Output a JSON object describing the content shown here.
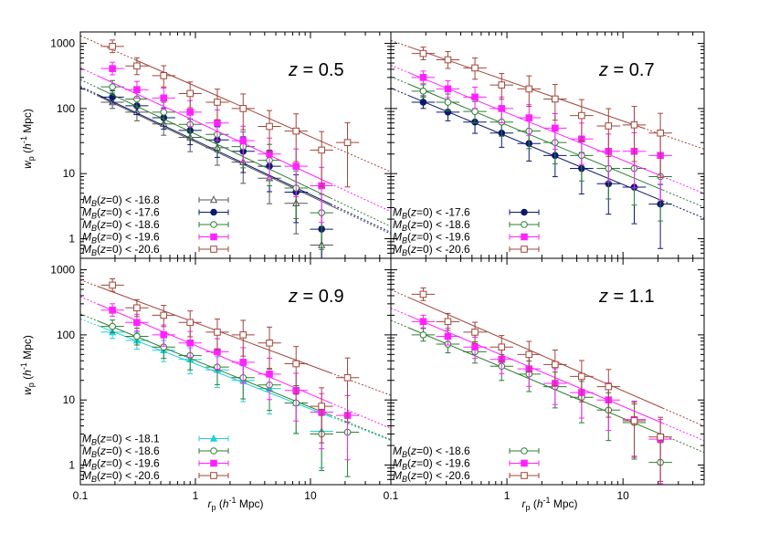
{
  "chart_data": {
    "type": "scatter",
    "x_axis": {
      "label_main": "r",
      "label_sub": "p",
      "label_unit_pre": " (",
      "label_h": "h",
      "label_exp": "-1",
      "label_unit_post": " Mpc)",
      "scale": "log",
      "range": [
        0.1,
        50
      ],
      "ticks": [
        "0.1",
        "1",
        "10"
      ],
      "tick_values": [
        0.1,
        1,
        10
      ]
    },
    "y_axis": {
      "label_main": "w",
      "label_sub": "p",
      "label_unit_pre": " (",
      "label_h": "h",
      "label_exp": "-1",
      "label_unit_post": " Mpc)",
      "scale": "log",
      "range": [
        0.5,
        1500
      ],
      "ticks": [
        "1",
        "10",
        "100",
        "1000"
      ],
      "tick_values": [
        1,
        10,
        100,
        1000
      ]
    },
    "colors": {
      "-16.8": "#555555",
      "-17.6": "#0b1a6e",
      "-18.1": "#22d0d8",
      "-18.6": "#2e7d32",
      "-19.6": "#ff22ff",
      "-20.6": "#a0453a"
    },
    "panels": [
      {
        "z_prefix": "z",
        "z_value": " = 0.5",
        "series": [
          {
            "key": "-16.8",
            "legend_math": "M",
            "legend_sub": "B",
            "legend_arg": "(",
            "legend_z": "z",
            "legend_rest": "=0) < -16.8",
            "marker": "triangle-open",
            "x": [
              0.19,
              0.31,
              0.53,
              0.9,
              1.55,
              2.6,
              4.4,
              7.5,
              12.5
            ],
            "y": [
              125,
              88,
              58,
              36,
              25,
              15,
              8.5,
              3.5,
              0.8
            ],
            "fit": [
              0.14,
              17,
              158,
              2.9
            ]
          },
          {
            "key": "-17.6",
            "legend_math": "M",
            "legend_sub": "B",
            "legend_arg": "(",
            "legend_z": "z",
            "legend_rest": "=0) < -17.6",
            "marker": "circle-filled",
            "x": [
              0.19,
              0.31,
              0.53,
              0.9,
              1.55,
              2.6,
              4.4,
              7.5,
              12.5
            ],
            "y": [
              150,
              110,
              72,
              46,
              33,
              22,
              13,
              5.2,
              1.4
            ],
            "fit": [
              0.14,
              15,
              165,
              3.4
            ]
          },
          {
            "key": "-18.6",
            "legend_math": "M",
            "legend_sub": "B",
            "legend_arg": "(",
            "legend_z": "z",
            "legend_rest": "=0) < -18.6",
            "marker": "circle-open",
            "x": [
              0.19,
              0.31,
              0.53,
              0.9,
              1.55,
              2.6,
              4.4,
              7.5,
              12.5
            ],
            "y": [
              215,
              140,
              88,
              57,
              40,
              26,
              16,
              6,
              2.5
            ],
            "fit": [
              0.14,
              15,
              210,
              4.2
            ]
          },
          {
            "key": "-19.6",
            "legend_math": "M",
            "legend_sub": "B",
            "legend_arg": "(",
            "legend_z": "z",
            "legend_rest": "=0) < -19.6",
            "marker": "square-filled",
            "x": [
              0.19,
              0.31,
              0.53,
              0.9,
              1.55,
              2.6,
              4.4,
              7.5,
              12.5
            ],
            "y": [
              410,
              195,
              145,
              88,
              60,
              32,
              20,
              13,
              6.5
            ],
            "fit": [
              0.14,
              15,
              320,
              7
            ]
          },
          {
            "key": "-20.6",
            "legend_math": "M",
            "legend_sub": "B",
            "legend_arg": "(",
            "legend_z": "z",
            "legend_rest": "=0) < -20.6",
            "marker": "square-open",
            "x": [
              0.19,
              0.31,
              0.53,
              0.9,
              1.55,
              2.6,
              4.4,
              7.5,
              12.5,
              21
            ],
            "y": [
              900,
              450,
              320,
              170,
              125,
              100,
              53,
              45,
              23,
              30
            ],
            "fit": [
              0.3,
              15,
              560,
              27
            ]
          }
        ]
      },
      {
        "z_prefix": "z",
        "z_value": " = 0.7",
        "series": [
          {
            "key": "-17.6",
            "legend_math": "M",
            "legend_sub": "B",
            "legend_arg": "(",
            "legend_z": "z",
            "legend_rest": "=0) < -17.6",
            "marker": "circle-filled",
            "x": [
              0.19,
              0.31,
              0.53,
              0.9,
              1.55,
              2.6,
              4.4,
              7.5,
              12.5,
              21
            ],
            "y": [
              125,
              88,
              62,
              42,
              29,
              19,
              12,
              7,
              6.2,
              3.4
            ],
            "fit": [
              0.14,
              22,
              160,
              3.8
            ]
          },
          {
            "key": "-18.6",
            "legend_math": "M",
            "legend_sub": "B",
            "legend_arg": "(",
            "legend_z": "z",
            "legend_rest": "=0) < -18.6",
            "marker": "circle-open",
            "x": [
              0.19,
              0.31,
              0.53,
              0.9,
              1.55,
              2.6,
              4.4,
              7.5,
              12.5,
              21
            ],
            "y": [
              185,
              125,
              90,
              62,
              45,
              30,
              19,
              12,
              12,
              9
            ],
            "fit": [
              0.14,
              22,
              240,
              5.6
            ]
          },
          {
            "key": "-19.6",
            "legend_math": "M",
            "legend_sub": "B",
            "legend_arg": "(",
            "legend_z": "z",
            "legend_rest": "=0) < -19.6",
            "marker": "square-filled",
            "x": [
              0.19,
              0.31,
              0.53,
              0.9,
              1.55,
              2.6,
              4.4,
              7.5,
              12.5,
              21
            ],
            "y": [
              300,
              200,
              150,
              100,
              72,
              50,
              34,
              22,
              22,
              19
            ],
            "fit": [
              0.14,
              22,
              360,
              9
            ]
          },
          {
            "key": "-20.6",
            "legend_math": "M",
            "legend_sub": "B",
            "legend_arg": "(",
            "legend_z": "z",
            "legend_rest": "=0) < -20.6",
            "marker": "square-open",
            "x": [
              0.19,
              0.31,
              0.53,
              0.9,
              1.55,
              2.6,
              4.4,
              7.5,
              12.5,
              21
            ],
            "y": [
              700,
              560,
              420,
              230,
              200,
              140,
              78,
              54,
              56,
              42
            ],
            "fit": [
              0.14,
              15,
              900,
              50
            ]
          }
        ]
      },
      {
        "z_prefix": "z",
        "z_value": " = 0.9",
        "series": [
          {
            "key": "-18.1",
            "legend_math": "M",
            "legend_sub": "B",
            "legend_arg": "(",
            "legend_z": "z",
            "legend_rest": "=0) < -18.1",
            "marker": "triangle-filled",
            "x": [
              0.19,
              0.31,
              0.53,
              0.9,
              1.55,
              2.6,
              4.4,
              7.5,
              12.5
            ],
            "y": [
              110,
              82,
              58,
              42,
              29,
              20,
              15,
              9,
              3.3
            ],
            "fit": [
              0.14,
              15,
              140,
              5.5
            ]
          },
          {
            "key": "-18.6",
            "legend_math": "M",
            "legend_sub": "B",
            "legend_arg": "(",
            "legend_z": "z",
            "legend_rest": "=0) < -18.6",
            "marker": "circle-open",
            "x": [
              0.19,
              0.31,
              0.53,
              0.9,
              1.55,
              2.6,
              4.4,
              7.5,
              12.5,
              21
            ],
            "y": [
              135,
              95,
              65,
              48,
              32,
              22,
              17,
              9,
              3,
              3.2
            ],
            "fit": [
              0.14,
              15,
              165,
              5.8
            ]
          },
          {
            "key": "-19.6",
            "legend_math": "M",
            "legend_sub": "B",
            "legend_arg": "(",
            "legend_z": "z",
            "legend_rest": "=0) < -19.6",
            "marker": "square-filled",
            "x": [
              0.19,
              0.31,
              0.53,
              0.9,
              1.55,
              2.6,
              4.4,
              7.5,
              12.5,
              21
            ],
            "y": [
              240,
              155,
              100,
              75,
              55,
              38,
              25,
              14,
              6.5,
              5.8
            ],
            "fit": [
              0.14,
              15,
              300,
              9
            ]
          },
          {
            "key": "-20.6",
            "legend_math": "M",
            "legend_sub": "B",
            "legend_arg": "(",
            "legend_z": "z",
            "legend_rest": "=0) < -20.6",
            "marker": "square-open",
            "x": [
              0.19,
              0.31,
              0.53,
              0.9,
              1.55,
              2.6,
              4.4,
              7.5,
              12.5,
              21
            ],
            "y": [
              580,
              260,
              200,
              155,
              110,
              100,
              75,
              36,
              8,
              22
            ],
            "fit": [
              0.14,
              15,
              560,
              26
            ]
          }
        ]
      },
      {
        "z_prefix": "z",
        "z_value": " = 1.1",
        "series": [
          {
            "key": "-18.6",
            "legend_math": "M",
            "legend_sub": "B",
            "legend_arg": "(",
            "legend_z": "z",
            "legend_rest": "=0) < -18.6",
            "marker": "circle-open",
            "x": [
              0.19,
              0.31,
              0.53,
              0.9,
              1.55,
              2.6,
              4.4,
              7.5,
              12.5,
              21
            ],
            "y": [
              100,
              72,
              55,
              33,
              25,
              16,
              11,
              7,
              4.5,
              1.1
            ],
            "fit": [
              0.14,
              22,
              130,
              2.9
            ]
          },
          {
            "key": "-19.6",
            "legend_math": "M",
            "legend_sub": "B",
            "legend_arg": "(",
            "legend_z": "z",
            "legend_rest": "=0) < -19.6",
            "marker": "square-filled",
            "x": [
              0.19,
              0.31,
              0.53,
              0.9,
              1.55,
              2.6,
              4.4,
              7.5,
              12.5,
              21
            ],
            "y": [
              160,
              95,
              65,
              42,
              30,
              18,
              13,
              10,
              5,
              2.5
            ],
            "fit": [
              0.14,
              22,
              200,
              4.4
            ]
          },
          {
            "key": "-20.6",
            "legend_math": "M",
            "legend_sub": "B",
            "legend_arg": "(",
            "legend_z": "z",
            "legend_rest": "=0) < -20.6",
            "marker": "square-open",
            "x": [
              0.19,
              0.31,
              0.53,
              0.9,
              1.55,
              2.6,
              4.4,
              7.5,
              12.5,
              21
            ],
            "y": [
              420,
              160,
              110,
              65,
              50,
              35,
              23,
              16,
              4.8,
              2.7
            ],
            "fit": [
              0.14,
              22,
              380,
              7.5
            ]
          }
        ]
      }
    ]
  }
}
